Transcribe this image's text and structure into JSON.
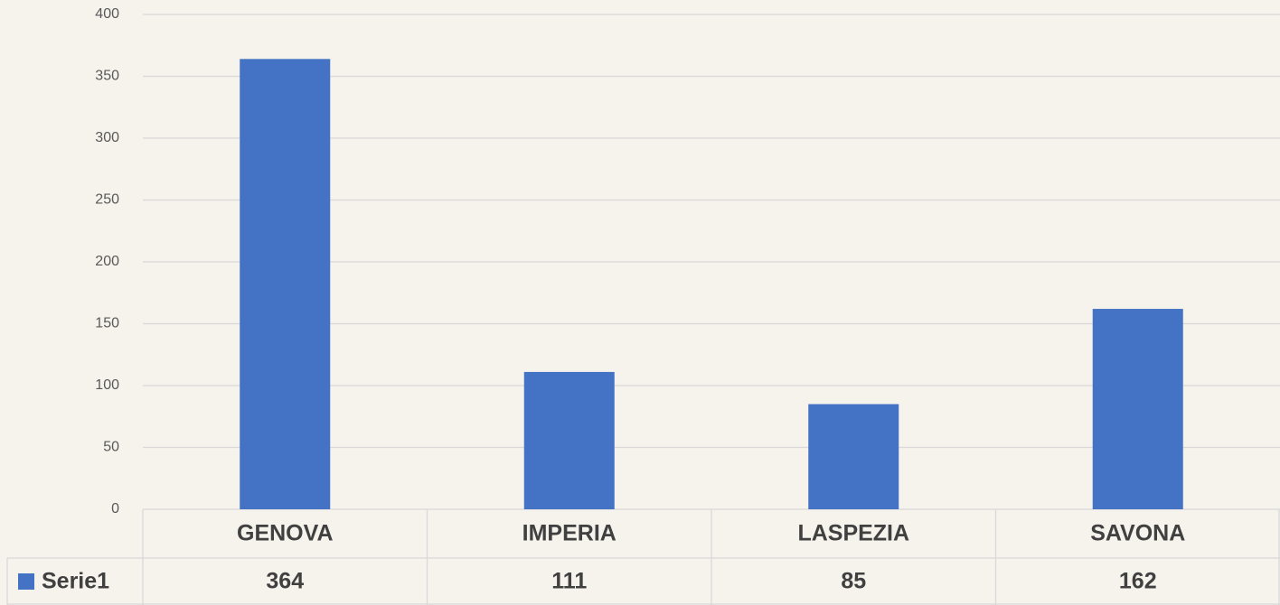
{
  "chart_data": {
    "type": "bar",
    "categories": [
      "GENOVA",
      "IMPERIA",
      "LASPEZIA",
      "SAVONA"
    ],
    "series": [
      {
        "name": "Serie1",
        "color": "#4472c4",
        "values": [
          364,
          111,
          85,
          162
        ]
      }
    ],
    "ylim": [
      0,
      400
    ],
    "yticks": [
      0,
      50,
      100,
      150,
      200,
      250,
      300,
      350,
      400
    ],
    "grid": true,
    "legend": "data-table"
  }
}
